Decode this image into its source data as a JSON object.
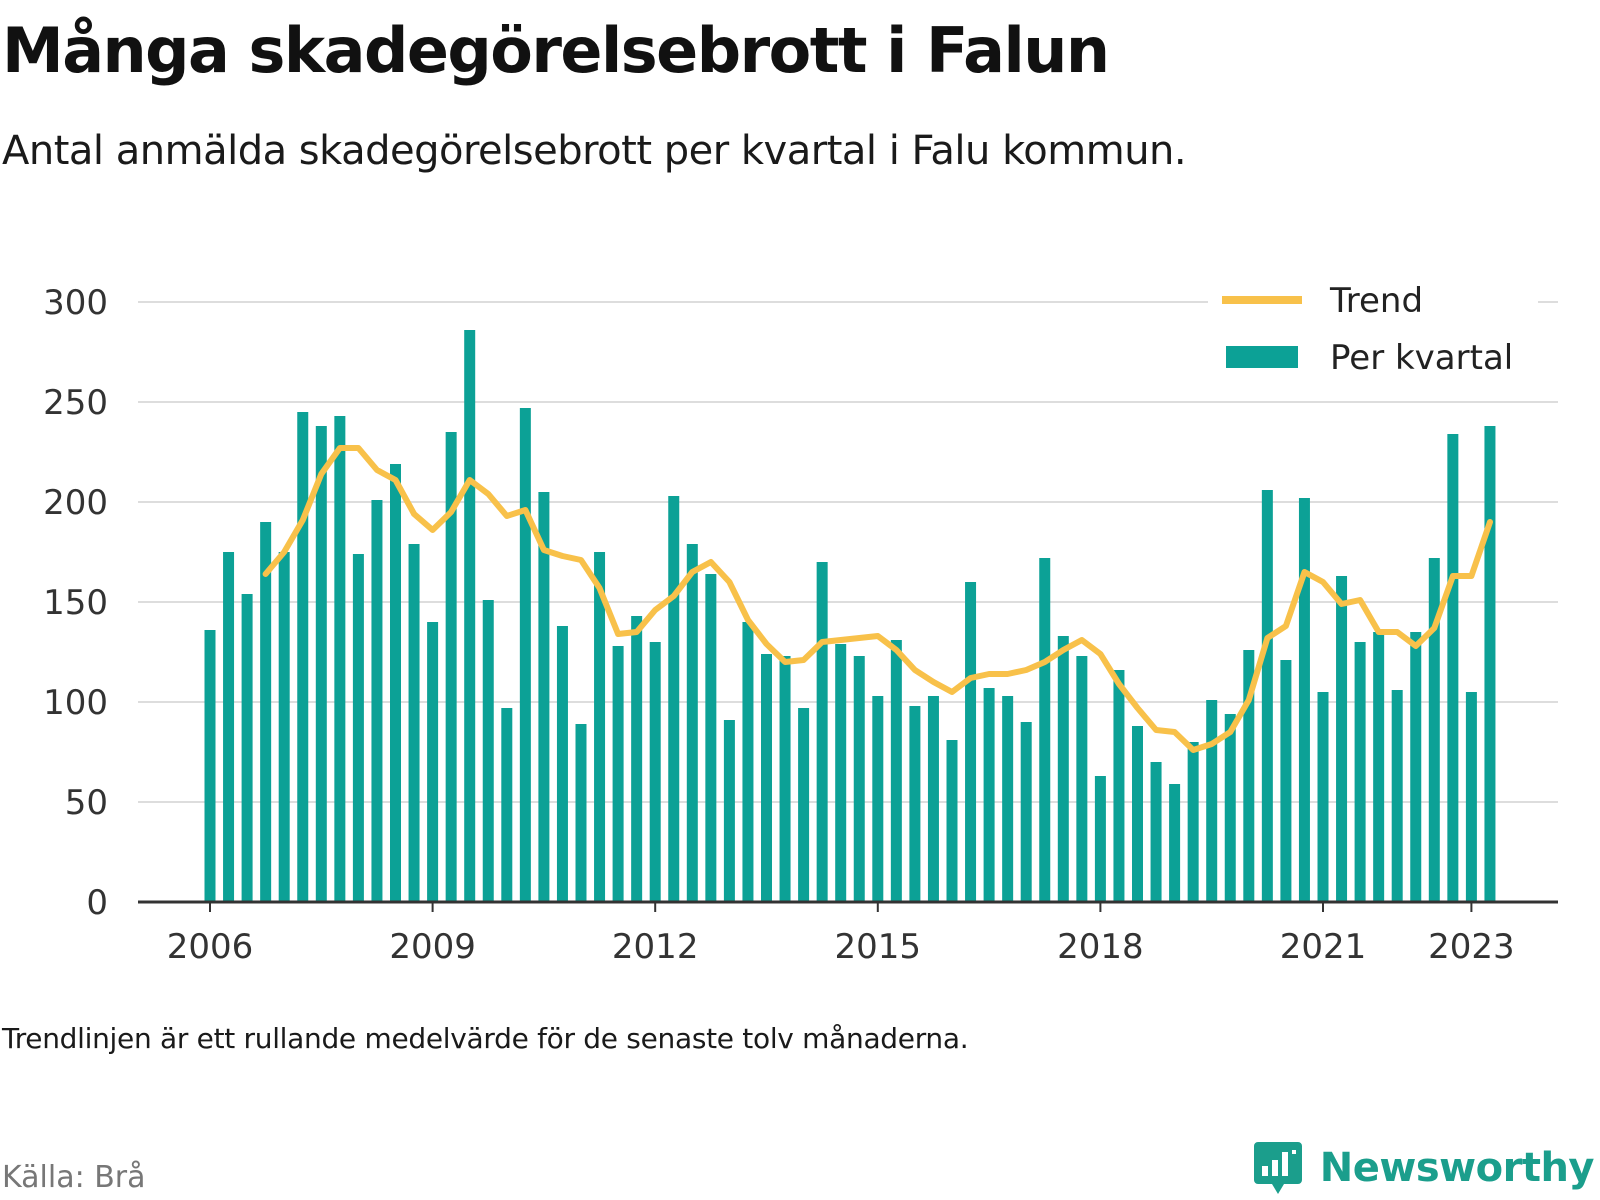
{
  "title": "Många skadegörelsebrott i Falun",
  "subtitle": "Antal anmälda skadegörelsebrott per kvartal i Falu kommun.",
  "note": "Trendlinjen är ett rullande medelvärde för de senaste tolv månaderna.",
  "source": "Källa: Brå",
  "brand": {
    "name": "Newsworthy",
    "icon": "newsworthy-logo-icon"
  },
  "colors": {
    "bars": "#0ca196",
    "trend": "#f8c14a",
    "grid": "#dddddd",
    "axis": "#333333",
    "brand": "#1b9e8c"
  },
  "chart_data": {
    "type": "bar",
    "title": "Många skadegörelsebrott i Falun",
    "subtitle": "Antal anmälda skadegörelsebrott per kvartal i Falu kommun.",
    "xlabel": "",
    "ylabel": "",
    "ylim": [
      0,
      300
    ],
    "yticks": [
      0,
      50,
      100,
      150,
      200,
      250,
      300
    ],
    "xticks": [
      "2006",
      "2009",
      "2012",
      "2015",
      "2018",
      "2021",
      "2023"
    ],
    "grid": true,
    "legend": {
      "position": "top-right",
      "entries": [
        "Trend",
        "Per kvartal"
      ]
    },
    "categories": [
      "2006 Q1",
      "2006 Q2",
      "2006 Q3",
      "2006 Q4",
      "2007 Q1",
      "2007 Q2",
      "2007 Q3",
      "2007 Q4",
      "2008 Q1",
      "2008 Q2",
      "2008 Q3",
      "2008 Q4",
      "2009 Q1",
      "2009 Q2",
      "2009 Q3",
      "2009 Q4",
      "2010 Q1",
      "2010 Q2",
      "2010 Q3",
      "2010 Q4",
      "2011 Q1",
      "2011 Q2",
      "2011 Q3",
      "2011 Q4",
      "2012 Q1",
      "2012 Q2",
      "2012 Q3",
      "2012 Q4",
      "2013 Q1",
      "2013 Q2",
      "2013 Q3",
      "2013 Q4",
      "2014 Q1",
      "2014 Q2",
      "2014 Q3",
      "2014 Q4",
      "2015 Q1",
      "2015 Q2",
      "2015 Q3",
      "2015 Q4",
      "2016 Q1",
      "2016 Q2",
      "2016 Q3",
      "2016 Q4",
      "2017 Q1",
      "2017 Q2",
      "2017 Q3",
      "2017 Q4",
      "2018 Q1",
      "2018 Q2",
      "2018 Q3",
      "2018 Q4",
      "2019 Q1",
      "2019 Q2",
      "2019 Q3",
      "2019 Q4",
      "2020 Q1",
      "2020 Q2",
      "2020 Q3",
      "2020 Q4",
      "2021 Q1",
      "2021 Q2",
      "2021 Q3",
      "2021 Q4",
      "2022 Q1",
      "2022 Q2",
      "2022 Q3",
      "2022 Q4",
      "2023 Q1",
      "2023 Q2"
    ],
    "series": [
      {
        "name": "Per kvartal",
        "type": "bar",
        "values": [
          136,
          175,
          154,
          190,
          175,
          245,
          238,
          243,
          174,
          201,
          219,
          179,
          140,
          235,
          286,
          151,
          97,
          247,
          205,
          138,
          89,
          175,
          128,
          143,
          130,
          203,
          179,
          164,
          91,
          140,
          124,
          123,
          97,
          170,
          129,
          123,
          103,
          131,
          98,
          103,
          81,
          160,
          107,
          103,
          90,
          172,
          133,
          123,
          63,
          116,
          88,
          70,
          59,
          80,
          101,
          94,
          126,
          206,
          121,
          202,
          105,
          163,
          130,
          135,
          106,
          135,
          172,
          234,
          105,
          238
        ]
      },
      {
        "name": "Trend",
        "type": "line",
        "values": [
          null,
          null,
          null,
          164,
          175,
          191,
          214,
          227,
          227,
          216,
          211,
          194,
          186,
          195,
          211,
          204,
          193,
          196,
          176,
          173,
          171,
          157,
          134,
          135,
          146,
          153,
          165,
          170,
          160,
          141,
          129,
          120,
          121,
          130,
          131,
          132,
          133,
          126,
          116,
          110,
          105,
          112,
          114,
          114,
          116,
          120,
          126,
          131,
          124,
          109,
          97,
          86,
          85,
          76,
          79,
          85,
          101,
          132,
          138,
          165,
          160,
          149,
          151,
          135,
          135,
          128,
          137,
          163,
          163,
          190
        ]
      }
    ]
  }
}
